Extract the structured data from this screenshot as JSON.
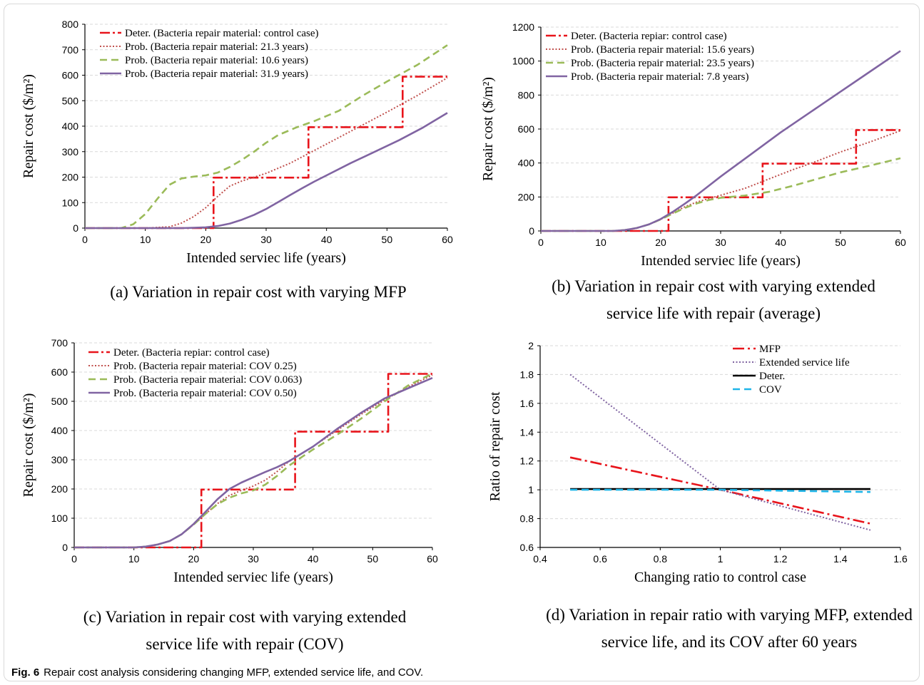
{
  "figure_caption": {
    "label": "Fig. 6",
    "text": "Repair cost analysis considering changing MFP, extended service life, and COV."
  },
  "colors": {
    "deter_red": "#e8141b",
    "prob_brown": "#c0504d",
    "prob_green": "#9bbb59",
    "prob_purple": "#8064a2",
    "black": "#000000",
    "cov_blue": "#1fb5e8"
  },
  "chart_data": [
    {
      "id": "a",
      "type": "line",
      "caption": [
        "(a) Variation in repair cost with varying MFP"
      ],
      "xlabel": "Intended serviec life (years)",
      "ylabel": "Repair cost ($/m²)",
      "xlim": [
        0,
        60
      ],
      "ylim": [
        0,
        800
      ],
      "xticks": [
        0,
        10,
        20,
        30,
        40,
        50,
        60
      ],
      "yticks": [
        0,
        100,
        200,
        300,
        400,
        500,
        600,
        700,
        800
      ],
      "grid": true,
      "legend": "top-left",
      "series": [
        {
          "name": "Deter. (Bacteria repair material: control case)",
          "style": "deter",
          "color": "#e8141b",
          "x": [
            0,
            21.3,
            21.3,
            37,
            37,
            52.6,
            52.6,
            60
          ],
          "y": [
            0,
            0,
            198,
            198,
            396,
            396,
            594,
            594
          ]
        },
        {
          "name": "Prob. (Bacteria repair material: 21.3 years)",
          "style": "dotted",
          "color": "#c0504d",
          "x": [
            0,
            10,
            14,
            16,
            18,
            20,
            22,
            24,
            26,
            30,
            34,
            38,
            42,
            46,
            50,
            55,
            60
          ],
          "y": [
            0,
            0,
            5,
            20,
            45,
            80,
            125,
            165,
            185,
            215,
            255,
            305,
            355,
            405,
            455,
            520,
            590
          ]
        },
        {
          "name": "Prob. (Bacteria repair material: 10.6 years)",
          "style": "dashed",
          "color": "#9bbb59",
          "x": [
            0,
            6,
            8,
            10,
            12,
            14,
            16,
            18,
            20,
            22,
            24,
            26,
            28,
            30,
            32,
            35,
            38,
            42,
            46,
            50,
            55,
            60
          ],
          "y": [
            0,
            0,
            15,
            55,
            115,
            170,
            195,
            202,
            207,
            218,
            240,
            268,
            300,
            335,
            365,
            395,
            420,
            460,
            520,
            575,
            640,
            718
          ]
        },
        {
          "name": "Prob. (Bacteria repair material: 31.9 years)",
          "style": "solid",
          "color": "#8064a2",
          "x": [
            0,
            16,
            18,
            20,
            22,
            24,
            26,
            28,
            30,
            32,
            34,
            36,
            38,
            40,
            44,
            48,
            52,
            56,
            60
          ],
          "y": [
            0,
            0,
            1,
            3,
            8,
            18,
            33,
            52,
            75,
            102,
            130,
            157,
            183,
            207,
            255,
            300,
            345,
            395,
            452
          ]
        }
      ]
    },
    {
      "id": "b",
      "type": "line",
      "caption": [
        "(b) Variation in repair cost with varying extended",
        "service life with repair (average)"
      ],
      "xlabel": "Intended serviec life (years)",
      "ylabel": "Repair cost ($/m²)",
      "xlim": [
        0,
        60
      ],
      "ylim": [
        0,
        1200
      ],
      "xticks": [
        0,
        10,
        20,
        30,
        40,
        50,
        60
      ],
      "yticks": [
        0,
        200,
        400,
        600,
        800,
        1000,
        1200
      ],
      "grid": true,
      "legend": "top-left",
      "series": [
        {
          "name": "Deter. (Bacteria repiar: control case)",
          "style": "deter",
          "color": "#e8141b",
          "x": [
            0,
            21.3,
            21.3,
            37,
            37,
            52.6,
            52.6,
            60
          ],
          "y": [
            0,
            0,
            198,
            198,
            396,
            396,
            594,
            594
          ]
        },
        {
          "name": "Prob. (Bacteria repair material: 15.6 years)",
          "style": "dotted",
          "color": "#c0504d",
          "x": [
            0,
            12,
            14,
            16,
            18,
            20,
            22,
            24,
            26,
            28,
            30,
            34,
            38,
            42,
            46,
            50,
            55,
            60
          ],
          "y": [
            0,
            0,
            5,
            17,
            38,
            68,
            105,
            142,
            170,
            190,
            210,
            250,
            305,
            360,
            410,
            465,
            525,
            590
          ]
        },
        {
          "name": "Prob. (Bacteria repair material: 23.5 years)",
          "style": "dashed",
          "color": "#9bbb59",
          "x": [
            0,
            12,
            14,
            16,
            18,
            20,
            22,
            24,
            26,
            28,
            30,
            34,
            38,
            42,
            46,
            50,
            55,
            60
          ],
          "y": [
            0,
            0,
            5,
            17,
            38,
            68,
            102,
            135,
            162,
            182,
            195,
            208,
            230,
            265,
            305,
            345,
            385,
            428
          ]
        },
        {
          "name": "Prob. (Bacteria repair material: 7.8 years)",
          "style": "solid",
          "color": "#8064a2",
          "x": [
            0,
            12,
            14,
            16,
            18,
            20,
            22,
            24,
            26,
            30,
            35,
            40,
            45,
            50,
            55,
            60
          ],
          "y": [
            0,
            0,
            5,
            17,
            38,
            70,
            112,
            160,
            210,
            320,
            450,
            580,
            700,
            820,
            940,
            1060
          ]
        }
      ]
    },
    {
      "id": "c",
      "type": "line",
      "caption": [
        "(c) Variation in repair cost with varying extended",
        "service life with repair (COV)"
      ],
      "xlabel": "Intended serviec life (years)",
      "ylabel": "Repair cost ($/m²)",
      "xlim": [
        0,
        60
      ],
      "ylim": [
        0,
        700
      ],
      "xticks": [
        0,
        10,
        20,
        30,
        40,
        50,
        60
      ],
      "yticks": [
        0,
        100,
        200,
        300,
        400,
        500,
        600,
        700
      ],
      "grid": true,
      "legend": "top-left",
      "series": [
        {
          "name": "Deter. (Bacteria repiar: control case)",
          "style": "deter",
          "color": "#e8141b",
          "x": [
            0,
            21.3,
            21.3,
            37,
            37,
            52.6,
            52.6,
            60
          ],
          "y": [
            0,
            0,
            198,
            198,
            396,
            396,
            594,
            594
          ]
        },
        {
          "name": "Prob. (Bacteria repair material: COV 0.25)",
          "style": "dotted",
          "color": "#c0504d",
          "x": [
            0,
            10,
            12,
            14,
            16,
            18,
            20,
            22,
            24,
            26,
            28,
            30,
            32,
            34,
            36,
            40,
            44,
            48,
            52,
            56,
            60
          ],
          "y": [
            0,
            0,
            3,
            10,
            22,
            45,
            78,
            115,
            150,
            178,
            195,
            210,
            230,
            260,
            295,
            345,
            400,
            455,
            505,
            550,
            590
          ]
        },
        {
          "name": "Prob. (Bacteria repair material: COV 0.063)",
          "style": "dashed",
          "color": "#9bbb59",
          "x": [
            0,
            10,
            12,
            14,
            16,
            18,
            20,
            22,
            24,
            26,
            28,
            30,
            32,
            34,
            36,
            40,
            44,
            48,
            52,
            56,
            60
          ],
          "y": [
            0,
            0,
            3,
            10,
            22,
            45,
            78,
            115,
            148,
            170,
            185,
            195,
            215,
            245,
            280,
            335,
            385,
            440,
            500,
            555,
            595
          ]
        },
        {
          "name": "Prob. (Bacteria repair material: COV 0.50)",
          "style": "solid",
          "color": "#8064a2",
          "x": [
            0,
            10,
            12,
            14,
            16,
            18,
            20,
            22,
            24,
            26,
            28,
            30,
            32,
            34,
            36,
            40,
            44,
            48,
            52,
            56,
            60
          ],
          "y": [
            0,
            0,
            3,
            10,
            22,
            45,
            80,
            122,
            165,
            200,
            222,
            240,
            258,
            275,
            295,
            345,
            405,
            460,
            510,
            545,
            580
          ]
        }
      ]
    },
    {
      "id": "d",
      "type": "line",
      "caption": [
        "(d) Variation in repair ratio with varying MFP, extended",
        "service life, and its COV after 60 years"
      ],
      "xlabel": "Changing ratio to control case",
      "ylabel": "Ratio of repair cost",
      "xlim": [
        0.4,
        1.6
      ],
      "ylim": [
        0.6,
        2.0
      ],
      "xticks": [
        0.4,
        0.6,
        0.8,
        1,
        1.2,
        1.4,
        1.6
      ],
      "yticks": [
        0.6,
        0.8,
        1,
        1.2,
        1.4,
        1.6,
        1.8,
        2
      ],
      "grid": true,
      "legend": "top-right",
      "series": [
        {
          "name": "MFP",
          "style": "dashdot",
          "color": "#e8141b",
          "x": [
            0.5,
            1,
            1.5
          ],
          "y": [
            1.225,
            1.0,
            0.765
          ]
        },
        {
          "name": "Extended service life",
          "style": "dotted",
          "color": "#8064a2",
          "x": [
            0.5,
            1,
            1.5
          ],
          "y": [
            1.8,
            1.0,
            0.72
          ]
        },
        {
          "name": "Deter.",
          "style": "solid",
          "color": "#000000",
          "x": [
            0.5,
            1,
            1.5
          ],
          "y": [
            1.005,
            1.005,
            1.005
          ]
        },
        {
          "name": "COV",
          "style": "dashed",
          "color": "#1fb5e8",
          "x": [
            0.5,
            1,
            1.5
          ],
          "y": [
            1.0,
            1.0,
            0.985
          ]
        }
      ]
    }
  ]
}
